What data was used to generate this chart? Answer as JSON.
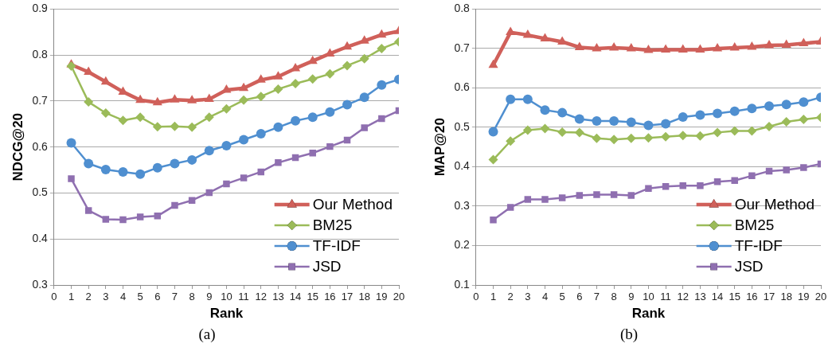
{
  "chart_data": [
    {
      "type": "line",
      "xlabel": "Rank",
      "ylabel": "NDCG@20",
      "x": [
        1,
        2,
        3,
        4,
        5,
        6,
        7,
        8,
        9,
        10,
        11,
        12,
        13,
        14,
        15,
        16,
        17,
        18,
        19,
        20
      ],
      "xlim": [
        0,
        20
      ],
      "xticks": [
        0,
        1,
        2,
        3,
        4,
        5,
        6,
        7,
        8,
        9,
        10,
        11,
        12,
        13,
        14,
        15,
        16,
        17,
        18,
        19,
        20
      ],
      "ylim": [
        0.3,
        0.9
      ],
      "yticks": [
        0.3,
        0.4,
        0.5,
        0.6,
        0.7,
        0.8,
        0.9
      ],
      "grid": "y",
      "legend": "bottom right",
      "line_style": "solid",
      "annotations": [
        "(a)"
      ],
      "series": [
        {
          "name": "Our Method",
          "color": "#d0605a",
          "marker": "triangle",
          "values": [
            0.779,
            0.763,
            0.742,
            0.72,
            0.702,
            0.697,
            0.703,
            0.701,
            0.704,
            0.724,
            0.728,
            0.746,
            0.753,
            0.771,
            0.787,
            0.803,
            0.818,
            0.831,
            0.844,
            0.852
          ]
        },
        {
          "name": "BM25",
          "color": "#9bbb59",
          "marker": "diamond",
          "values": [
            0.776,
            0.698,
            0.674,
            0.658,
            0.665,
            0.644,
            0.645,
            0.643,
            0.665,
            0.683,
            0.702,
            0.71,
            0.726,
            0.738,
            0.748,
            0.759,
            0.777,
            0.792,
            0.814,
            0.829
          ]
        },
        {
          "name": "TF-IDF",
          "color": "#4f8fd0",
          "marker": "circle",
          "values": [
            0.609,
            0.564,
            0.551,
            0.546,
            0.541,
            0.555,
            0.564,
            0.572,
            0.592,
            0.603,
            0.616,
            0.629,
            0.643,
            0.657,
            0.665,
            0.676,
            0.692,
            0.708,
            0.735,
            0.747
          ]
        },
        {
          "name": "JSD",
          "color": "#8f6fb0",
          "marker": "square",
          "values": [
            0.531,
            0.462,
            0.443,
            0.442,
            0.448,
            0.45,
            0.473,
            0.484,
            0.501,
            0.52,
            0.533,
            0.546,
            0.566,
            0.577,
            0.587,
            0.601,
            0.615,
            0.642,
            0.662,
            0.679
          ]
        }
      ]
    },
    {
      "type": "line",
      "xlabel": "Rank",
      "ylabel": "MAP@20",
      "x": [
        1,
        2,
        3,
        4,
        5,
        6,
        7,
        8,
        9,
        10,
        11,
        12,
        13,
        14,
        15,
        16,
        17,
        18,
        19,
        20
      ],
      "xlim": [
        0,
        20
      ],
      "xticks": [
        0,
        1,
        2,
        3,
        4,
        5,
        6,
        7,
        8,
        9,
        10,
        11,
        12,
        13,
        14,
        15,
        16,
        17,
        18,
        19,
        20
      ],
      "ylim": [
        0.1,
        0.8
      ],
      "yticks": [
        0.1,
        0.2,
        0.3,
        0.4,
        0.5,
        0.6,
        0.7,
        0.8
      ],
      "grid": "y",
      "legend": "bottom right",
      "line_style": "solid",
      "annotations": [
        "(b)"
      ],
      "series": [
        {
          "name": "Our Method",
          "color": "#d0605a",
          "marker": "triangle",
          "values": [
            0.658,
            0.741,
            0.734,
            0.725,
            0.717,
            0.703,
            0.7,
            0.702,
            0.7,
            0.696,
            0.697,
            0.697,
            0.697,
            0.7,
            0.702,
            0.704,
            0.708,
            0.709,
            0.713,
            0.717
          ]
        },
        {
          "name": "BM25",
          "color": "#9bbb59",
          "marker": "diamond",
          "values": [
            0.418,
            0.465,
            0.493,
            0.497,
            0.488,
            0.487,
            0.472,
            0.469,
            0.472,
            0.473,
            0.476,
            0.479,
            0.478,
            0.487,
            0.491,
            0.491,
            0.502,
            0.514,
            0.52,
            0.525
          ]
        },
        {
          "name": "TF-IDF",
          "color": "#4f8fd0",
          "marker": "circle",
          "values": [
            0.489,
            0.571,
            0.571,
            0.544,
            0.537,
            0.521,
            0.516,
            0.516,
            0.513,
            0.505,
            0.509,
            0.526,
            0.531,
            0.535,
            0.541,
            0.548,
            0.554,
            0.558,
            0.564,
            0.576
          ]
        },
        {
          "name": "JSD",
          "color": "#8f6fb0",
          "marker": "square",
          "values": [
            0.265,
            0.297,
            0.317,
            0.317,
            0.321,
            0.327,
            0.329,
            0.329,
            0.327,
            0.345,
            0.35,
            0.352,
            0.352,
            0.362,
            0.365,
            0.377,
            0.389,
            0.392,
            0.398,
            0.407
          ]
        }
      ]
    }
  ]
}
